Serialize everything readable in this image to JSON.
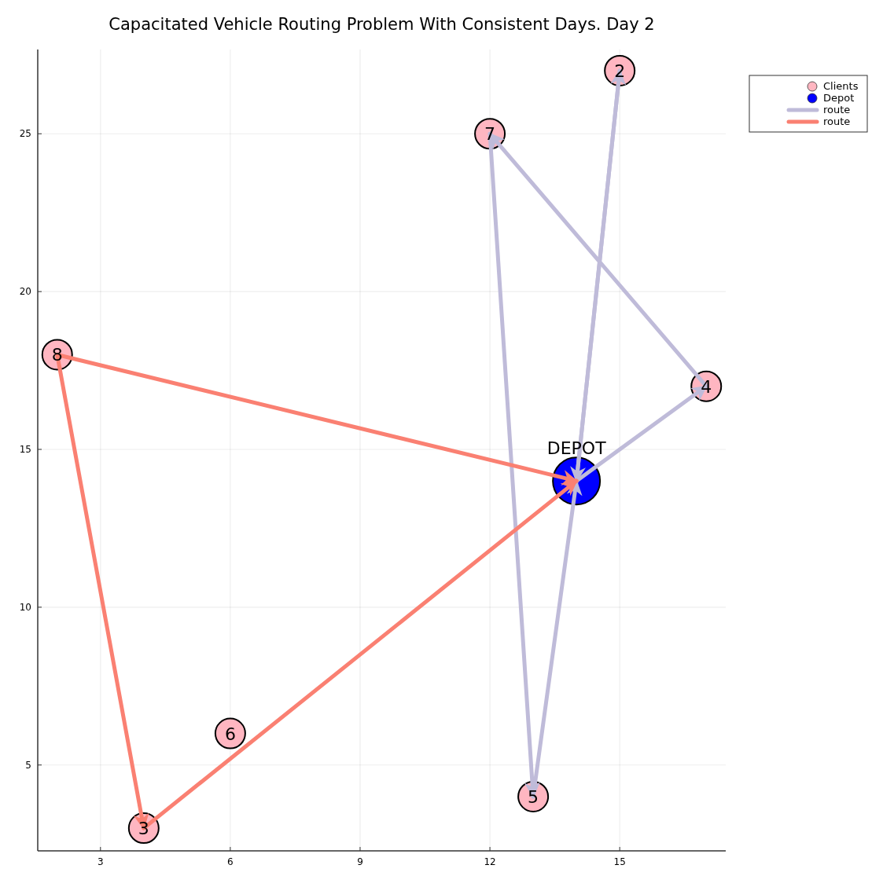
{
  "chart_data": {
    "type": "scatter",
    "title": "Capacitated Vehicle Routing Problem With Consistent Days. Day 2",
    "xlim": [
      1.55,
      17.45
    ],
    "xticks": [
      3,
      6,
      9,
      12,
      15
    ],
    "ylim": [
      2.28,
      27.67
    ],
    "yticks": [
      5,
      10,
      15,
      20,
      25
    ],
    "grid": true,
    "legend": "top right",
    "annotations": [
      {
        "text": "2",
        "x": 15,
        "y": 27
      },
      {
        "text": "3",
        "x": 4,
        "y": 3
      },
      {
        "text": "4",
        "x": 17,
        "y": 17
      },
      {
        "text": "5",
        "x": 13,
        "y": 4
      },
      {
        "text": "6",
        "x": 6,
        "y": 6
      },
      {
        "text": "7",
        "x": 12,
        "y": 25
      },
      {
        "text": "8",
        "x": 2,
        "y": 18
      },
      {
        "text": "DEPOT",
        "x": 14,
        "y": 14
      }
    ],
    "series": [
      {
        "name": "route",
        "type": "line",
        "marker": "none",
        "color": "#bfbbd9",
        "x": [
          14,
          15
        ],
        "values": [
          14,
          27
        ]
      },
      {
        "type": "line",
        "marker": "none",
        "color": "#bfbbd9",
        "x": [
          15,
          14
        ],
        "values": [
          27,
          14
        ]
      },
      {
        "type": "line",
        "marker": "none",
        "color": "#bfbbd9",
        "x": [
          14,
          17
        ],
        "values": [
          14,
          17
        ]
      },
      {
        "type": "line",
        "marker": "none",
        "color": "#bfbbd9",
        "x": [
          17,
          12
        ],
        "values": [
          17,
          25
        ]
      },
      {
        "type": "line",
        "marker": "none",
        "color": "#bfbbd9",
        "x": [
          12,
          13
        ],
        "values": [
          25,
          4
        ]
      },
      {
        "type": "line",
        "marker": "none",
        "color": "#bfbbd9",
        "x": [
          13,
          14
        ],
        "values": [
          4,
          14
        ]
      },
      {
        "name": "route",
        "type": "line",
        "marker": "none",
        "color": "#fa8072",
        "x": [
          2,
          14
        ],
        "values": [
          18,
          14
        ]
      },
      {
        "type": "line",
        "marker": "none",
        "color": "#fa8072",
        "x": [
          2,
          4
        ],
        "values": [
          18,
          3
        ]
      },
      {
        "type": "line",
        "marker": "none",
        "color": "#fa8072",
        "x": [
          4,
          14
        ],
        "values": [
          3,
          14
        ]
      },
      {
        "name": "Clients",
        "type": "scatter",
        "marker": "circle",
        "color": "#ffb6c1",
        "x": [
          15,
          4,
          17,
          13,
          6,
          12,
          2
        ],
        "values": [
          27,
          3,
          17,
          4,
          6,
          25,
          18
        ]
      },
      {
        "name": "Depot",
        "type": "scatter",
        "marker": "circle",
        "color": "#0000ff",
        "x": [
          14
        ],
        "values": [
          14
        ]
      }
    ]
  }
}
